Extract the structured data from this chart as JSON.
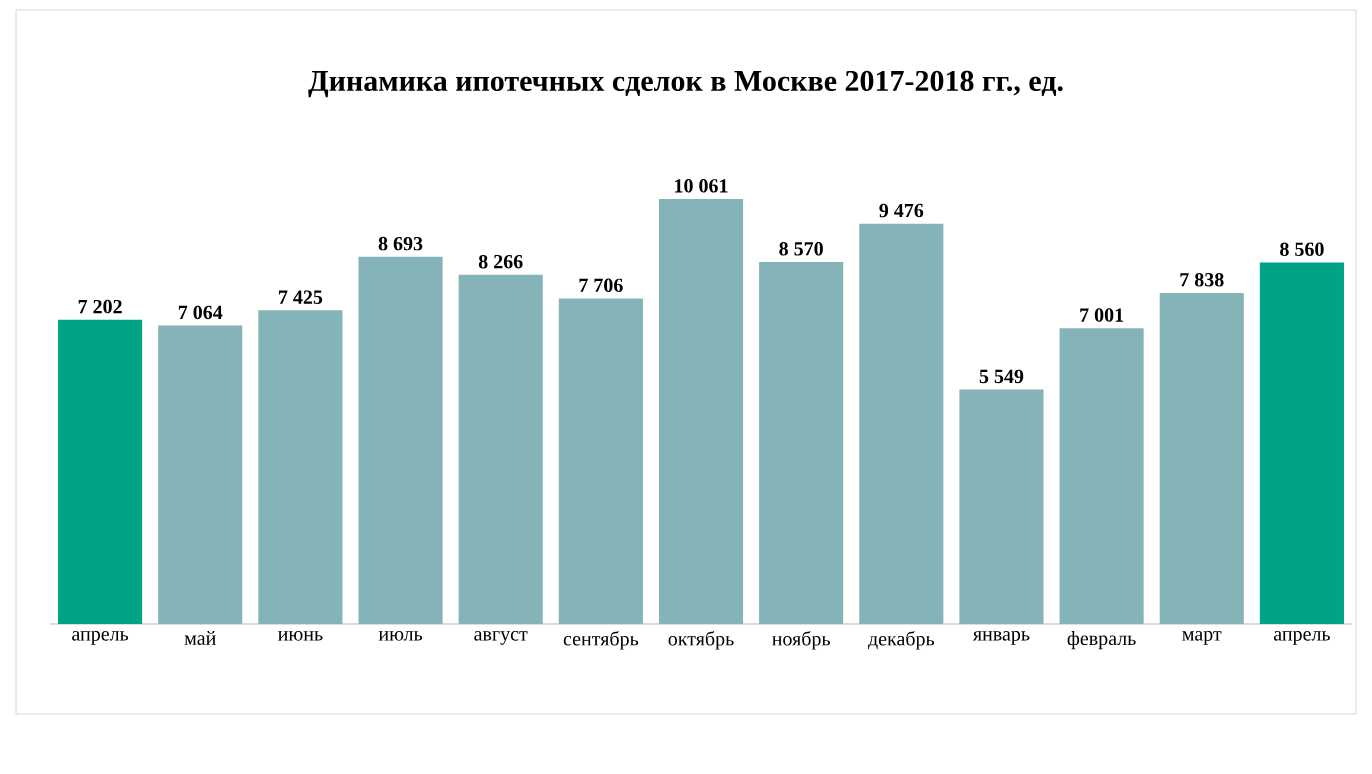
{
  "chart_data": {
    "type": "bar",
    "title": "Динамика ипотечных сделок в Москве 2017-2018 гг., ед.",
    "categories": [
      "апрель",
      "май",
      "июнь",
      "июль",
      "август",
      "сентябрь",
      "октябрь",
      "ноябрь",
      "декабрь",
      "январь",
      "февраль",
      "март",
      "апрель"
    ],
    "values": [
      7202,
      7064,
      7425,
      8693,
      8266,
      7706,
      10061,
      8570,
      9476,
      5549,
      7001,
      7838,
      8560
    ],
    "value_labels": [
      "7 202",
      "7 064",
      "7 425",
      "8 693",
      "8 266",
      "7 706",
      "10 061",
      "8 570",
      "9 476",
      "5 549",
      "7 001",
      "7 838",
      "8 560"
    ],
    "colors": [
      "#00a385",
      "#84b4b8",
      "#84b4b8",
      "#84b4b8",
      "#84b4b8",
      "#84b4b8",
      "#84b4b8",
      "#84b4b8",
      "#84b4b8",
      "#84b4b8",
      "#84b4b8",
      "#84b4b8",
      "#00a385"
    ],
    "data_labels": true
  }
}
